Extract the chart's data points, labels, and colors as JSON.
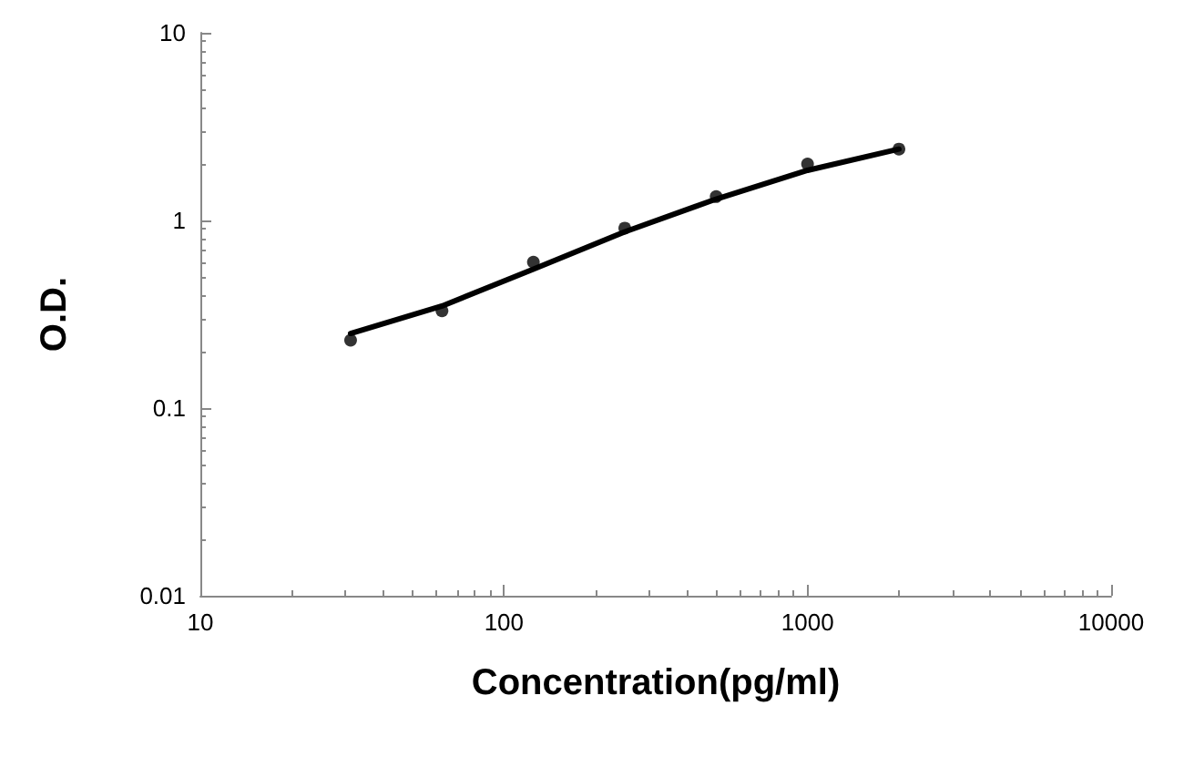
{
  "chart_data": {
    "type": "scatter",
    "xlabel": "Concentration(pg/ml)",
    "ylabel": "O.D.",
    "log": "xy",
    "grid": false,
    "marker": "circle",
    "xlim": [
      10,
      10000
    ],
    "xticks": [
      10,
      100,
      1000,
      10000
    ],
    "ylim": [
      0.01,
      10
    ],
    "yticks": [
      0.01,
      0.1,
      1,
      10
    ],
    "series": [
      {
        "color": "#000000",
        "x": [
          31.25,
          62.5,
          125,
          250,
          500,
          1000,
          2000
        ],
        "values": [
          0.23,
          0.33,
          0.6,
          0.91,
          1.34,
          2.0,
          2.4
        ]
      },
      {
        "type": "line",
        "color": "#000000",
        "line_style": "solid",
        "marker": "none",
        "x": [
          31.25,
          62.5,
          125,
          250,
          500,
          1000,
          2000
        ],
        "values": [
          0.25,
          0.35,
          0.55,
          0.87,
          1.3,
          1.85,
          2.4
        ]
      }
    ]
  }
}
